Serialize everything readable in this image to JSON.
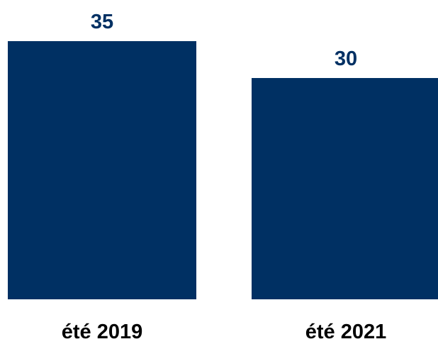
{
  "chart_data": {
    "type": "bar",
    "categories": [
      "été 2019",
      "été 2021"
    ],
    "values": [
      35,
      30
    ],
    "title": "",
    "xlabel": "",
    "ylabel": "",
    "ylim": [
      0,
      35
    ],
    "grid": false,
    "legend": "none",
    "colors": {
      "bar": "#003063",
      "value_label": "#003063",
      "category_label": "#000000"
    }
  }
}
